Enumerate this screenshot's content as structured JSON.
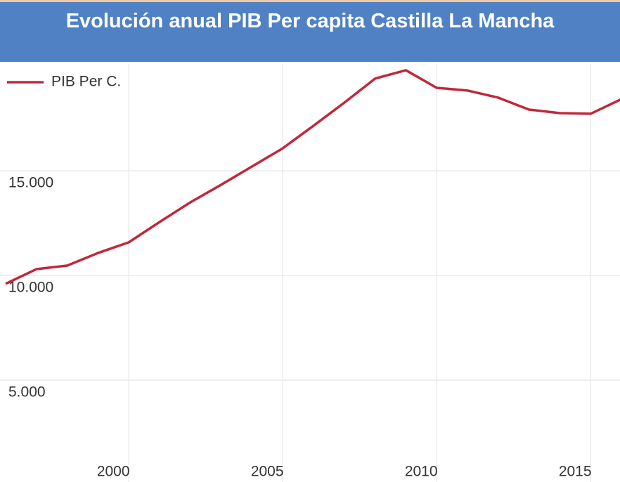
{
  "chart_data": {
    "type": "line",
    "title": "Evolución anual PIB Per capita Castilla La Mancha",
    "x": [
      1996,
      1997,
      1998,
      1999,
      2000,
      2001,
      2002,
      2003,
      2004,
      2005,
      2006,
      2007,
      2008,
      2009,
      2010,
      2011,
      2012,
      2013,
      2014,
      2015,
      2016
    ],
    "series": [
      {
        "name": "PIB Per C.",
        "color": "#c0283a",
        "values": [
          9600,
          10300,
          10470,
          11070,
          11580,
          12550,
          13490,
          14330,
          15200,
          16070,
          17150,
          18250,
          19400,
          19800,
          18960,
          18830,
          18490,
          17920,
          17750,
          17720,
          18420
        ]
      }
    ],
    "xlim": [
      1996,
      2016
    ],
    "xticks": [
      2000,
      2005,
      2010,
      2015
    ],
    "ylim": [
      200,
      20100
    ],
    "yticks": [
      {
        "value": 5000,
        "label": "5.000"
      },
      {
        "value": 10000,
        "label": "10.000"
      },
      {
        "value": 15000,
        "label": "15.000"
      }
    ],
    "grid": true,
    "legend": "top-left"
  }
}
